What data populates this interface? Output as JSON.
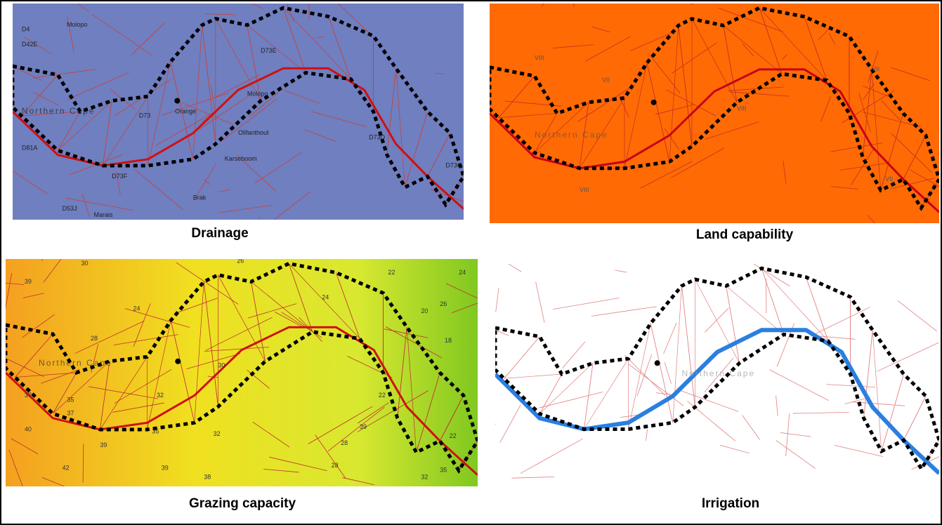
{
  "panels": [
    {
      "caption": "Drainage",
      "labels": [
        "D4",
        "D42E",
        "Molopo",
        "D73E",
        "Northern Cape",
        "D73",
        "Orange",
        "D73F",
        "D81A",
        "Olifanthout",
        "Karseboom",
        "Molopo",
        "D73D",
        "D73C",
        "D53J",
        "Marais",
        "Brak"
      ]
    },
    {
      "caption": "Land capability",
      "labels": [
        "Northern Cape",
        "VIII",
        "VII",
        "VIII",
        "VII",
        "VIII",
        "VII"
      ]
    },
    {
      "caption": "Grazing capacity",
      "labels": [
        "30",
        "39",
        "28",
        "24",
        "26",
        "24",
        "22",
        "24",
        "20",
        "26",
        "18",
        "Northern Cape",
        "37",
        "35",
        "37",
        "32",
        "30",
        "40",
        "39",
        "35",
        "32",
        "22",
        "22",
        "39",
        "42",
        "39",
        "38",
        "28",
        "28",
        "32",
        "35"
      ]
    },
    {
      "caption": "Irrigation",
      "labels": [
        "Northern Cape"
      ]
    }
  ]
}
